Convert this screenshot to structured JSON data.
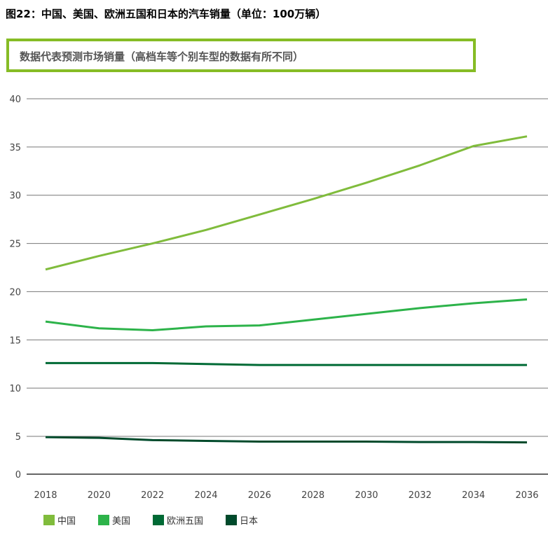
{
  "title": "图22：中国、美国、欧洲五国和日本的汽车销量（单位：100万辆）",
  "note": "数据代表预测市场销量（高档车等个别车型的数据有所不同）",
  "chart_data": {
    "type": "line",
    "title": "图22：中国、美国、欧洲五国和日本的汽车销量（单位：100万辆）",
    "xlabel": "",
    "ylabel": "",
    "x": [
      "2018",
      "2020",
      "2022",
      "2024",
      "2026",
      "2028",
      "2030",
      "2032",
      "2034",
      "2036"
    ],
    "yticks": [
      "0",
      "5",
      "10",
      "15",
      "20",
      "25",
      "30",
      "35",
      "40"
    ],
    "ylim": [
      0,
      40
    ],
    "grid": true,
    "legend_position": "bottom-left",
    "series": [
      {
        "name": "中国",
        "color": "#80bc3c",
        "values": [
          22.3,
          23.7,
          25.0,
          26.4,
          28.0,
          29.6,
          31.3,
          33.1,
          35.1,
          36.1
        ]
      },
      {
        "name": "美国",
        "color": "#2db34a",
        "values": [
          16.9,
          16.2,
          16.0,
          16.4,
          16.5,
          17.1,
          17.7,
          18.3,
          18.8,
          19.2
        ]
      },
      {
        "name": "欧洲五国",
        "color": "#006a35",
        "values": [
          12.6,
          12.6,
          12.6,
          12.5,
          12.4,
          12.4,
          12.4,
          12.4,
          12.4,
          12.4
        ]
      },
      {
        "name": "日本",
        "color": "#004a2b",
        "values": [
          4.9,
          4.8,
          4.5,
          4.4,
          4.3,
          4.3,
          4.3,
          4.25,
          4.25,
          4.2
        ]
      }
    ]
  }
}
